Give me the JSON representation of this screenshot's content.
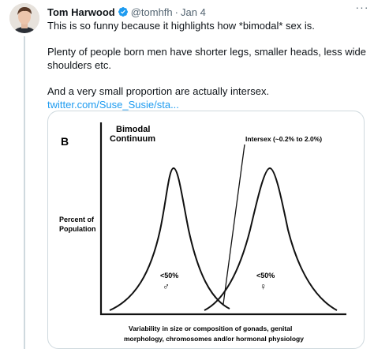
{
  "author": {
    "name": "Tom Harwood",
    "handle": "@tomhfh",
    "separator": "·",
    "time": "Jan 4"
  },
  "icons": {
    "verified": "verified-badge-icon",
    "more": "more-options-icon",
    "accent": "#1d9bf0"
  },
  "tweet": {
    "line1": "This is so funny because it highlights how *bimodal* sex is.",
    "line2": "Plenty of people born men have shorter legs, smaller heads, less wide shoulders etc.",
    "line3": "And a very small proportion are actually intersex.",
    "link": "twitter.com/Suse_Susie/sta..."
  },
  "figure": {
    "panel_letter": "B",
    "title_line1": "Bimodal",
    "title_line2": "Continuum",
    "ylabel_line1": "Percent of",
    "ylabel_line2": "Population",
    "annotation": "Intersex (~0.2%  to  2.0%)",
    "left_peak_label": "<50%",
    "left_peak_symbol": "♂",
    "right_peak_label": "<50%",
    "right_peak_symbol": "♀",
    "xlabel_line1": "Variability in size or composition of gonads, genital",
    "xlabel_line2": "morphology, chromosomes and/or hormonal physiology"
  }
}
